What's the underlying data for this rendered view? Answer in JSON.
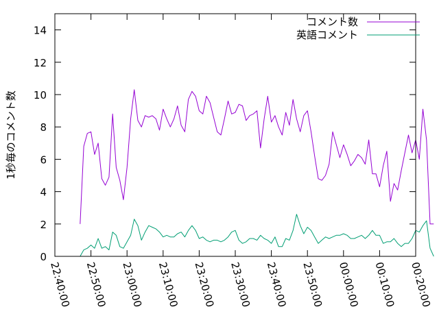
{
  "chart_data": {
    "type": "line",
    "title": "",
    "xlabel": "",
    "ylabel": "1秒毎のコメント数",
    "ylim": [
      0,
      15
    ],
    "yticks": [
      0,
      2,
      4,
      6,
      8,
      10,
      12,
      14
    ],
    "xlim": [
      "22:40:00",
      "00:20:00"
    ],
    "xticks": [
      "22:40:00",
      "22:50:00",
      "23:00:00",
      "23:10:00",
      "23:20:00",
      "23:30:00",
      "23:40:00",
      "23:50:00",
      "00:00:00",
      "00:10:00",
      "00:20:00"
    ],
    "grid": false,
    "legend": "top-right",
    "time_step_seconds": 60,
    "series": [
      {
        "name": "コメント数",
        "color": "#9400d3",
        "start": "22:47:00",
        "values": [
          2.0,
          6.8,
          7.6,
          7.7,
          6.3,
          7.0,
          4.8,
          4.4,
          4.9,
          8.8,
          5.5,
          4.7,
          3.5,
          5.5,
          8.5,
          10.3,
          8.4,
          8.0,
          8.7,
          8.6,
          8.7,
          8.5,
          7.8,
          9.1,
          8.5,
          8.0,
          8.5,
          9.3,
          8.1,
          7.7,
          9.7,
          10.2,
          9.9,
          9.0,
          8.8,
          9.9,
          9.5,
          8.6,
          7.7,
          7.5,
          8.5,
          9.6,
          8.8,
          8.9,
          9.4,
          9.3,
          8.4,
          8.7,
          8.8,
          9.0,
          6.7,
          8.5,
          9.9,
          8.3,
          8.7,
          8.0,
          7.5,
          8.9,
          8.1,
          9.7,
          8.5,
          7.7,
          8.7,
          9.0,
          7.7,
          6.2,
          4.8,
          4.7,
          5.0,
          5.7,
          7.7,
          6.9,
          6.1,
          6.9,
          6.3,
          5.6,
          5.9,
          6.3,
          6.1,
          5.7,
          7.2,
          5.1,
          5.1,
          4.3,
          5.6,
          6.5,
          3.4,
          4.5,
          4.1,
          5.3,
          6.4,
          7.5,
          6.4,
          7.2,
          6.0,
          9.1,
          7.2,
          2.0,
          2.0
        ]
      },
      {
        "name": "英語コメント",
        "color": "#009e73",
        "start": "22:47:00",
        "values": [
          0.0,
          0.4,
          0.5,
          0.7,
          0.5,
          1.1,
          0.5,
          0.6,
          0.4,
          1.5,
          1.3,
          0.6,
          0.5,
          0.9,
          1.3,
          2.3,
          1.9,
          1.0,
          1.5,
          1.9,
          1.8,
          1.7,
          1.5,
          1.2,
          1.3,
          1.2,
          1.2,
          1.4,
          1.5,
          1.2,
          1.6,
          1.9,
          1.6,
          1.1,
          1.2,
          1.0,
          0.9,
          1.0,
          1.0,
          0.9,
          1.0,
          1.2,
          1.5,
          1.6,
          1.0,
          0.8,
          0.9,
          1.1,
          1.1,
          1.0,
          1.3,
          1.1,
          1.0,
          0.8,
          1.2,
          0.6,
          0.6,
          1.1,
          1.0,
          1.6,
          2.6,
          1.9,
          1.4,
          1.8,
          1.6,
          1.2,
          0.8,
          1.0,
          1.2,
          1.1,
          1.2,
          1.3,
          1.3,
          1.4,
          1.3,
          1.1,
          1.1,
          1.2,
          1.3,
          1.1,
          1.3,
          1.6,
          1.3,
          1.3,
          0.8,
          0.9,
          0.9,
          1.1,
          0.8,
          0.6,
          0.8,
          0.8,
          1.1,
          1.6,
          1.5,
          1.9,
          2.2,
          0.5,
          0.0
        ]
      }
    ]
  }
}
